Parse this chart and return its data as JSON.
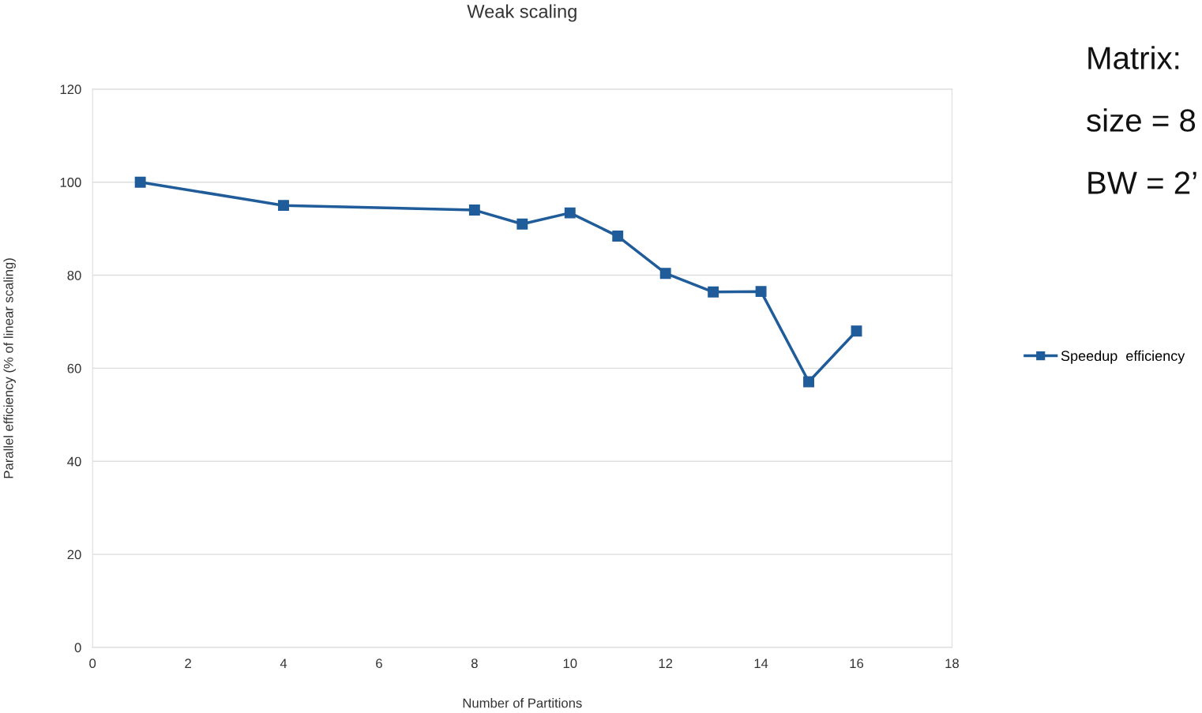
{
  "chart_data": {
    "type": "line",
    "title": "Weak scaling",
    "xlabel": "Number of Partitions",
    "ylabel": "Parallel efficiency (% of linear scaling)",
    "x": [
      1,
      4,
      8,
      9,
      10,
      11,
      12,
      13,
      14,
      15,
      16
    ],
    "series": [
      {
        "name": "Speedup  efficiency",
        "color": "#1f5c99",
        "values": [
          100,
          95,
          94,
          91,
          93.4,
          88.4,
          80.4,
          76.4,
          76.5,
          57.1,
          68
        ]
      }
    ],
    "xlim": [
      0,
      18
    ],
    "xticks": [
      0,
      2,
      4,
      6,
      8,
      10,
      12,
      14,
      16,
      18
    ],
    "ylim": [
      0,
      120
    ],
    "yticks": [
      0,
      20,
      40,
      60,
      80,
      100,
      120
    ],
    "grid": "y",
    "legend": "right",
    "marker": "square",
    "line_style": "solid",
    "annotations": [
      "Matrix:",
      "size = 8",
      "BW = 2’"
    ]
  }
}
